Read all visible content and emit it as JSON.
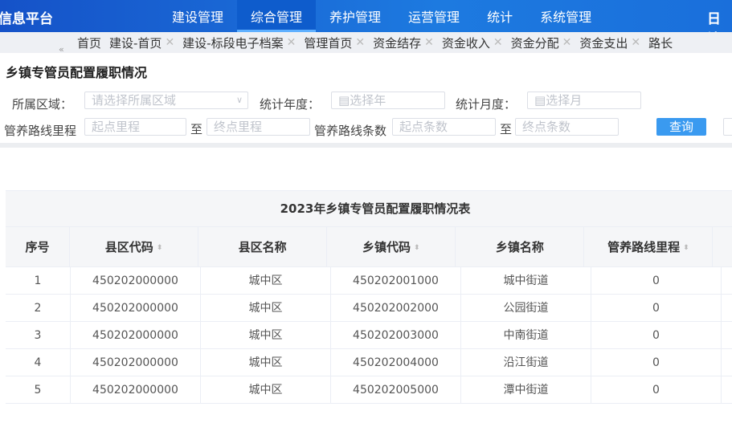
{
  "header": {
    "logo": "信息平台",
    "nav": [
      "建设管理",
      "综合管理",
      "养护管理",
      "运营管理",
      "统计",
      "系统管理"
    ],
    "active": "综合管理",
    "right": "日访"
  },
  "tabs": [
    {
      "label": "首页",
      "closable": false
    },
    {
      "label": "建设-首页",
      "closable": true
    },
    {
      "label": "建设-标段电子档案",
      "closable": true
    },
    {
      "label": "管理首页",
      "closable": true
    },
    {
      "label": "资金结存",
      "closable": true
    },
    {
      "label": "资金收入",
      "closable": true
    },
    {
      "label": "资金分配",
      "closable": true
    },
    {
      "label": "资金支出",
      "closable": true
    },
    {
      "label": "路长",
      "closable": false
    }
  ],
  "page": {
    "title": "乡镇专管员配置履职情况"
  },
  "filters": {
    "region_label": "所属区域：",
    "region_placeholder": "请选择所属区域",
    "year_label": "统计年度：",
    "year_placeholder": "选择年",
    "month_label": "统计月度：",
    "month_placeholder": "选择月",
    "mileage_label": "管养路线里程",
    "mileage_start": "起点里程",
    "to1": "至",
    "mileage_end": "终点里程",
    "count_label": "管养路线条数",
    "count_start": "起点条数",
    "to2": "至",
    "count_end": "终点条数",
    "query": "查询"
  },
  "table": {
    "title": "2023年乡镇专管员配置履职情况表",
    "columns": [
      {
        "label": "序号",
        "sortable": false
      },
      {
        "label": "县区代码",
        "sortable": true
      },
      {
        "label": "县区名称",
        "sortable": false
      },
      {
        "label": "乡镇代码",
        "sortable": true
      },
      {
        "label": "乡镇名称",
        "sortable": false
      },
      {
        "label": "管养路线里程",
        "sortable": true
      }
    ],
    "rows": [
      [
        "1",
        "450202000000",
        "城中区",
        "450202001000",
        "城中街道",
        "0"
      ],
      [
        "2",
        "450202000000",
        "城中区",
        "450202002000",
        "公园街道",
        "0"
      ],
      [
        "3",
        "450202000000",
        "城中区",
        "450202003000",
        "中南街道",
        "0"
      ],
      [
        "4",
        "450202000000",
        "城中区",
        "450202004000",
        "沿江街道",
        "0"
      ],
      [
        "5",
        "450202000000",
        "城中区",
        "450202005000",
        "潭中街道",
        "0"
      ]
    ]
  }
}
